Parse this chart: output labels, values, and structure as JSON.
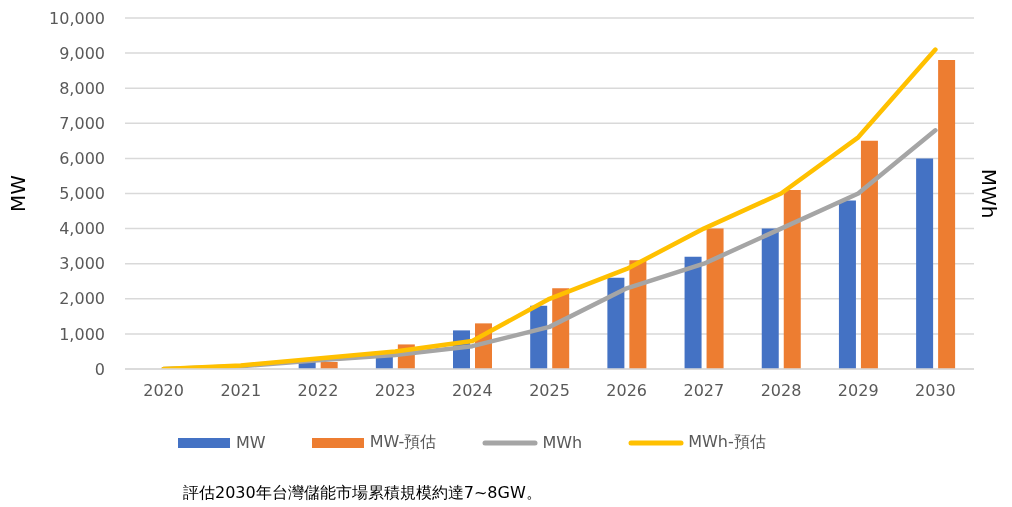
{
  "chart_data": {
    "type": "bar",
    "ylabel": "MW",
    "y2label": "MWh",
    "categories": [
      "2020",
      "2021",
      "2022",
      "2023",
      "2024",
      "2025",
      "2026",
      "2027",
      "2028",
      "2029",
      "2030"
    ],
    "series": [
      {
        "name": "MW",
        "color": "#4472c4",
        "values": [
          null,
          null,
          200,
          400,
          1100,
          1800,
          2600,
          3200,
          4000,
          4800,
          6000
        ]
      },
      {
        "name": "MW-預估",
        "color": "#ed7d31",
        "values": [
          null,
          null,
          200,
          700,
          1300,
          2300,
          3100,
          4000,
          5100,
          6500,
          8800
        ]
      },
      {
        "name": "MWh",
        "type": "line",
        "color": "#a5a5a5",
        "values": [
          0,
          80,
          250,
          400,
          650,
          1200,
          2300,
          3000,
          4000,
          5000,
          6800
        ]
      },
      {
        "name": "MWh-預估",
        "type": "line",
        "color": "#ffc000",
        "values": [
          0,
          100,
          300,
          500,
          800,
          2000,
          2850,
          4000,
          5000,
          6600,
          9100
        ]
      }
    ],
    "ylim": [
      0,
      10000
    ],
    "yticks": [
      0,
      {
        "value": 1000,
        "label": "1,000"
      },
      {
        "value": 2000,
        "label": "2,000"
      },
      {
        "value": 3000,
        "label": "3,000"
      },
      {
        "value": 4000,
        "label": "4,000"
      },
      {
        "value": 5000,
        "label": "5,000"
      },
      {
        "value": 6000,
        "label": "6,000"
      },
      {
        "value": 7000,
        "label": "7,000"
      },
      {
        "value": 8000,
        "label": "8,000"
      },
      {
        "value": 9000,
        "label": "9,000"
      },
      {
        "value": 10000,
        "label": "10,000"
      }
    ],
    "grid": "y",
    "legend": "bottom",
    "annotations": [
      "評估2030年台灣儲能市場累積規模約達7~8GW。"
    ]
  }
}
